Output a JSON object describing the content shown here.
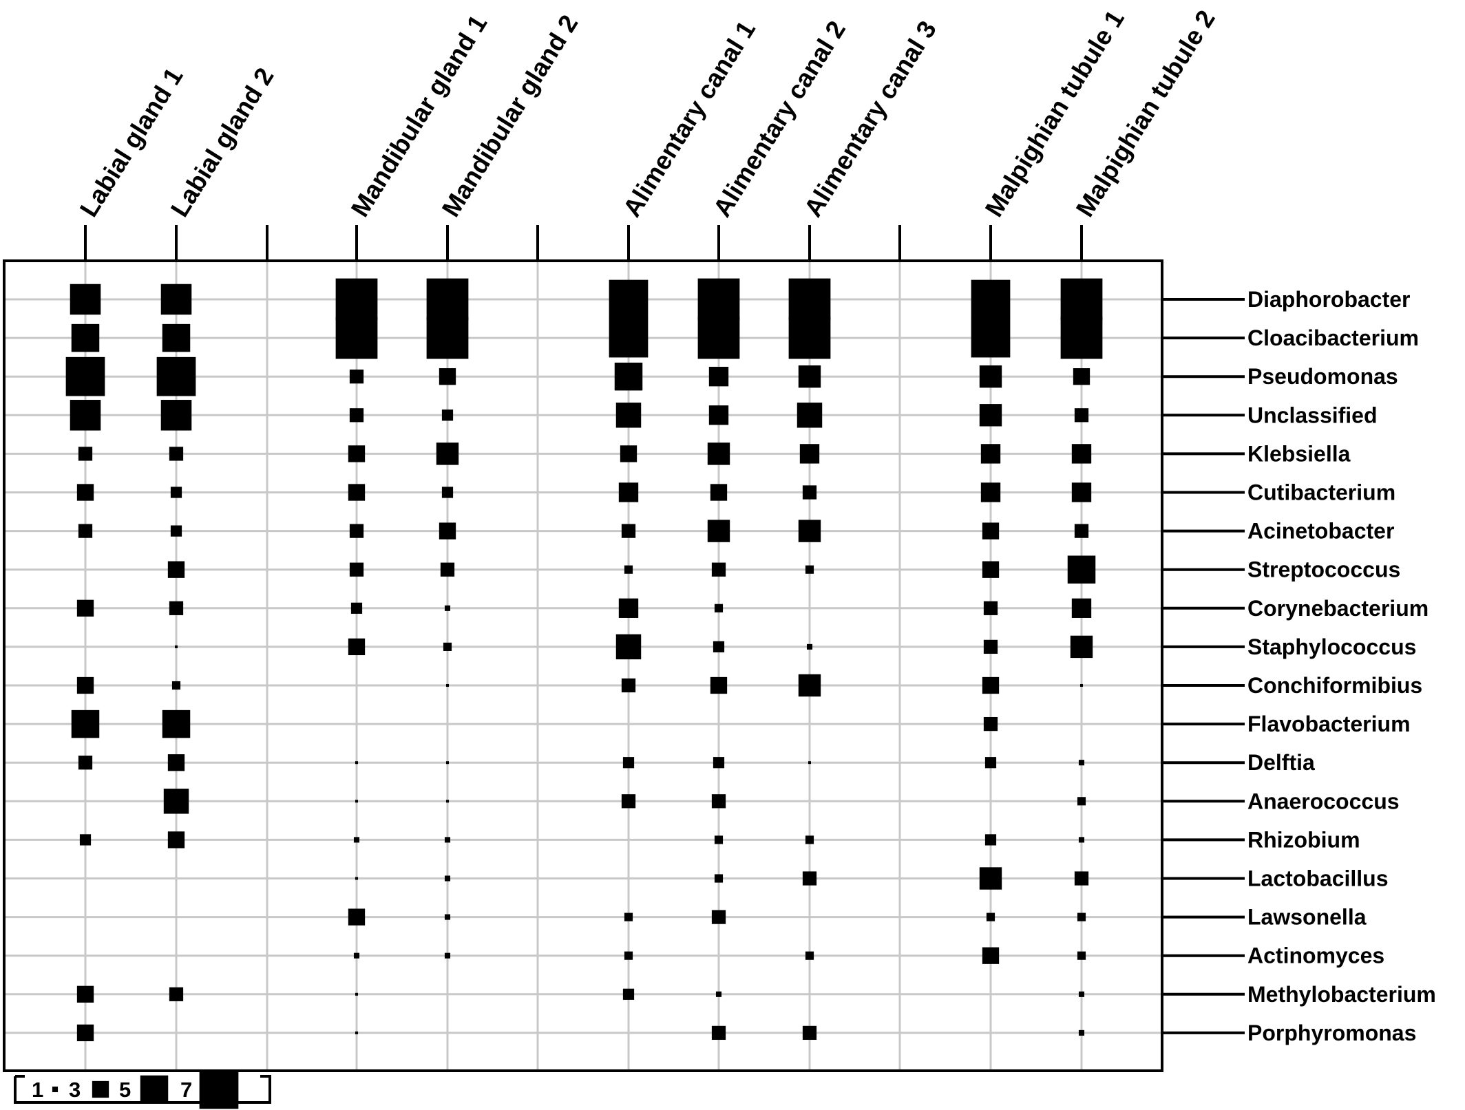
{
  "chart_data": {
    "type": "bubble-matrix",
    "x_categories": [
      "Labial gland 1",
      "Labial gland 2",
      "Mandibular gland 1",
      "Mandibular gland 2",
      "Alimentary canal 1",
      "Alimentary canal 2",
      "Alimentary canal 3",
      "Malpighian tubule 1",
      "Malpighian tubule 2"
    ],
    "y_categories": [
      "Diaphorobacter",
      "Cloacibacterium",
      "Pseudomonas",
      "Unclassified",
      "Klebsiella",
      "Cutibacterium",
      "Acinetobacter",
      "Streptococcus",
      "Corynebacterium",
      "Staphylococcus",
      "Conchiformibius",
      "Flavobacterium",
      "Delftia",
      "Anaerococcus",
      "Rhizobium",
      "Lactobacillus",
      "Lawsonella",
      "Actinomyces",
      "Methylobacterium",
      "Porphyromonas"
    ],
    "values": [
      [
        5.5,
        5.5,
        7.5,
        7.5,
        7,
        7.5,
        7.5,
        7,
        7.5
      ],
      [
        5,
        5,
        7.5,
        7.5,
        7,
        7.5,
        7.5,
        7,
        7.5
      ],
      [
        7,
        7,
        2.5,
        3,
        5,
        3.5,
        4,
        4,
        3
      ],
      [
        5.5,
        5.5,
        2.5,
        2,
        4.5,
        3.5,
        4.5,
        4,
        2.5
      ],
      [
        2.5,
        2.5,
        3,
        4,
        3,
        4,
        3.5,
        3.5,
        3.5
      ],
      [
        3,
        2,
        3,
        2,
        3.5,
        3,
        2.5,
        3.5,
        3.5
      ],
      [
        2.5,
        2,
        2.5,
        3,
        2.5,
        4,
        4,
        3,
        2.5
      ],
      [
        0,
        3,
        2.5,
        2.5,
        1.5,
        2.5,
        1.5,
        3,
        5
      ],
      [
        3,
        2.5,
        2,
        1,
        3.5,
        1.5,
        0,
        2.5,
        3.5
      ],
      [
        0,
        0.5,
        3,
        1.5,
        4.5,
        2,
        1,
        2.5,
        4
      ],
      [
        3,
        1.5,
        0,
        0.5,
        2.5,
        3,
        4,
        3,
        0.5
      ],
      [
        5,
        5,
        0,
        0,
        0,
        0,
        0,
        2.5,
        0
      ],
      [
        2.5,
        3,
        0.5,
        0.5,
        2,
        2,
        0.3,
        2,
        1
      ],
      [
        0,
        4.5,
        0.3,
        0.5,
        2.5,
        2.5,
        0,
        0,
        1.5
      ],
      [
        2,
        3,
        1,
        1,
        0,
        1.5,
        1.5,
        2,
        1
      ],
      [
        0,
        0,
        0.5,
        1,
        0,
        1.5,
        2.5,
        4,
        2.5
      ],
      [
        0,
        0,
        3,
        1,
        1.5,
        2.5,
        0,
        1.5,
        1.5
      ],
      [
        0,
        0,
        1,
        1,
        1.5,
        0,
        1.5,
        3,
        1.5
      ],
      [
        3,
        2.5,
        0.3,
        0,
        2,
        1,
        0,
        0,
        1
      ],
      [
        3,
        0,
        0.5,
        0,
        0,
        2.5,
        2.5,
        0,
        1
      ]
    ],
    "size_legend": {
      "values": [
        1,
        3,
        5,
        7
      ],
      "labels": [
        "1",
        "3",
        "5",
        "7"
      ]
    },
    "grid": true
  }
}
